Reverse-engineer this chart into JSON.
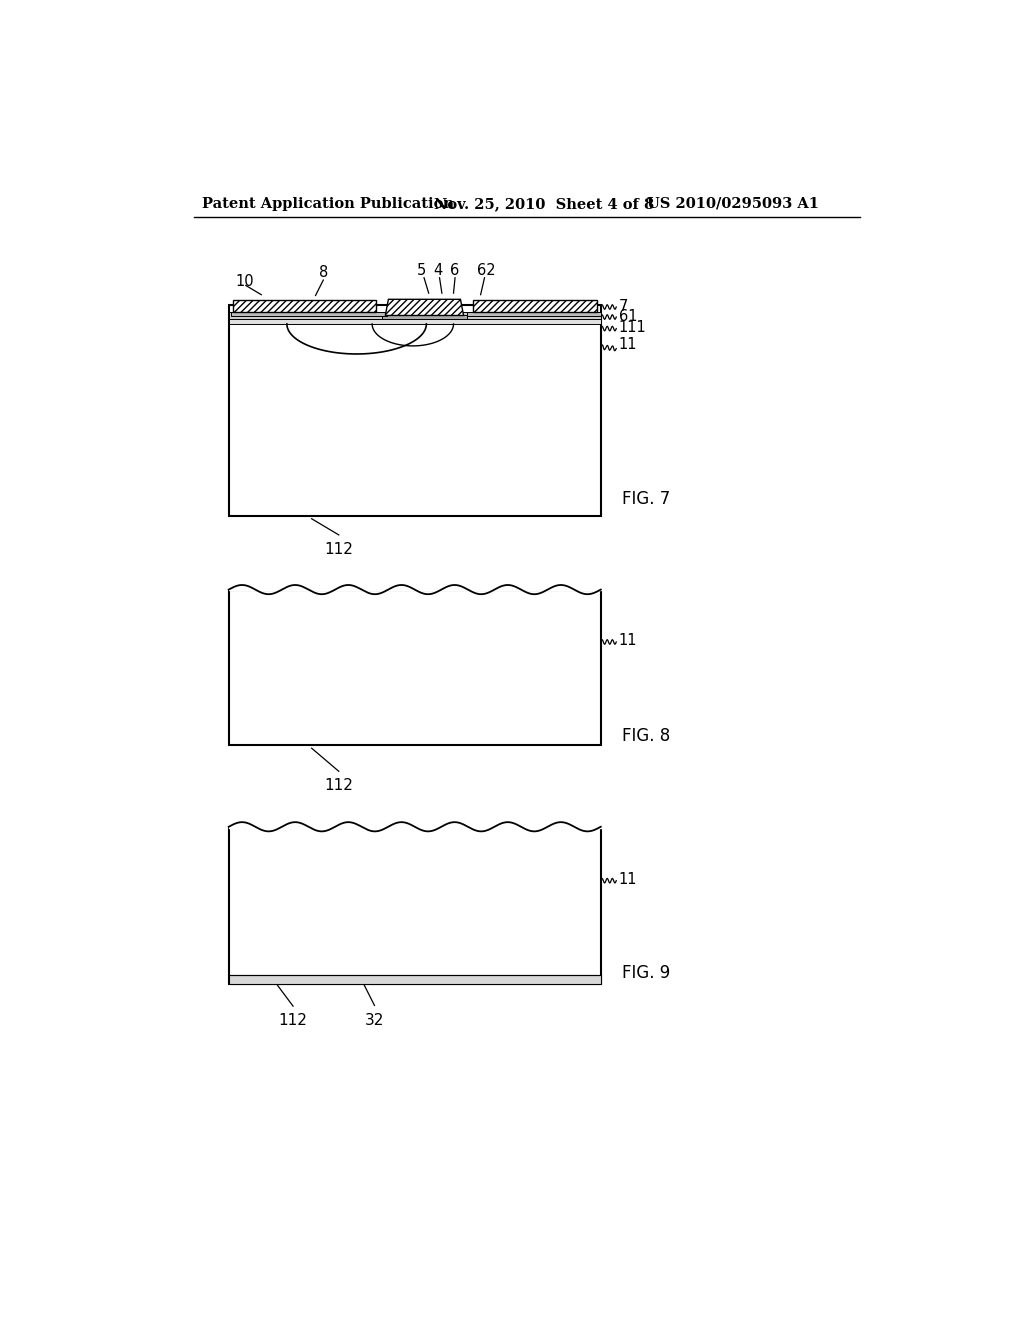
{
  "bg_color": "#ffffff",
  "header_left": "Patent Application Publication",
  "header_mid": "Nov. 25, 2010  Sheet 4 of 8",
  "header_right": "US 2010/0295093 A1",
  "fig7_label": "FIG. 7",
  "fig8_label": "FIG. 8",
  "fig9_label": "FIG. 9",
  "label_112_fig7": "112",
  "label_112_fig8": "112",
  "label_112_fig9": "112",
  "label_32_fig9": "32",
  "label_11_fig7": "11",
  "label_111_fig7": "111",
  "label_61_fig7": "61",
  "label_7_fig7": "7",
  "label_62_fig7": "62",
  "label_6_fig7": "6",
  "label_4_fig7": "4",
  "label_5_fig7": "5",
  "label_8_fig7": "8",
  "label_10_fig7": "10",
  "label_11_fig8": "11",
  "label_11_fig9": "11"
}
